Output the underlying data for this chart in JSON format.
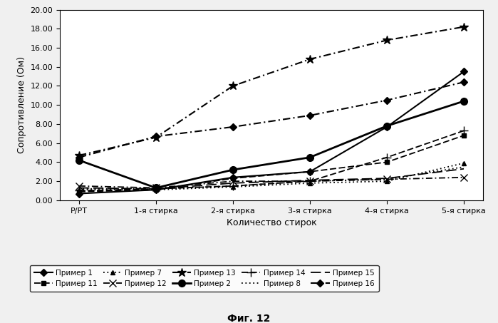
{
  "x_labels": [
    "Р/РТ",
    "1-я стирка",
    "2-я стирка",
    "3-я стирка",
    "4-я стирка",
    "5-я стирка"
  ],
  "x_positions": [
    0,
    1,
    2,
    3,
    4,
    5
  ],
  "xlabel": "Количество стирок",
  "ylabel": "Сопротивление (Ом)",
  "title": "Фиг. 12",
  "ylim": [
    0.0,
    20.0
  ],
  "yticks": [
    0.0,
    2.0,
    4.0,
    6.0,
    8.0,
    10.0,
    12.0,
    14.0,
    16.0,
    18.0,
    20.0
  ],
  "series": [
    {
      "label": "Пример 1",
      "values": [
        0.7,
        1.1,
        2.4,
        3.0,
        7.7,
        13.5
      ],
      "linestyle": "solid",
      "marker": "D",
      "markersize": 5,
      "linewidth": 1.5,
      "dashes": null
    },
    {
      "label": "Пример 2",
      "values": [
        4.2,
        1.3,
        3.2,
        4.5,
        7.8,
        10.4
      ],
      "linestyle": "solid",
      "marker": "o",
      "markersize": 7,
      "linewidth": 2.0,
      "dashes": null
    },
    {
      "label": "Пример 11",
      "values": [
        0.9,
        1.1,
        2.3,
        3.0,
        4.0,
        6.8
      ],
      "linestyle": "dashed",
      "marker": "s",
      "markersize": 5,
      "linewidth": 1.3,
      "dashes": [
        5,
        2
      ]
    },
    {
      "label": "Пример 14",
      "values": [
        1.0,
        1.2,
        1.5,
        2.0,
        4.5,
        7.3
      ],
      "linestyle": "dashed",
      "marker": "+",
      "markersize": 8,
      "linewidth": 1.3,
      "dashes": [
        5,
        2
      ]
    },
    {
      "label": "Пример 7",
      "values": [
        1.1,
        1.1,
        1.4,
        1.8,
        2.0,
        3.9
      ],
      "linestyle": "dotted",
      "marker": "^",
      "markersize": 5,
      "linewidth": 1.3,
      "dashes": [
        1,
        2
      ]
    },
    {
      "label": "Пример 8",
      "values": [
        1.2,
        1.2,
        1.5,
        2.0,
        2.2,
        3.5
      ],
      "linestyle": "dotted",
      "marker": "None",
      "markersize": 0,
      "linewidth": 1.3,
      "dashes": [
        1,
        2
      ]
    },
    {
      "label": "Пример 12",
      "values": [
        1.5,
        1.3,
        2.0,
        2.0,
        2.2,
        2.4
      ],
      "linestyle": "dashdot",
      "marker": "x",
      "markersize": 7,
      "linewidth": 1.3,
      "dashes": [
        5,
        2,
        1,
        2
      ]
    },
    {
      "label": "Пример 15",
      "values": [
        1.3,
        1.2,
        1.8,
        2.1,
        2.3,
        3.3
      ],
      "linestyle": "dashed",
      "marker": "None",
      "markersize": 0,
      "linewidth": 1.3,
      "dashes": [
        8,
        3
      ]
    },
    {
      "label": "Пример 13",
      "values": [
        4.7,
        6.6,
        12.0,
        14.8,
        16.8,
        18.2
      ],
      "linestyle": "dashdot",
      "marker": "*",
      "markersize": 9,
      "linewidth": 1.5,
      "dashes": [
        5,
        2,
        1,
        2
      ]
    },
    {
      "label": "Пример 16",
      "values": [
        4.5,
        6.7,
        7.7,
        8.9,
        10.5,
        12.4
      ],
      "linestyle": "dashdot",
      "marker": "D",
      "markersize": 5,
      "linewidth": 1.5,
      "dashes": [
        5,
        2,
        1,
        2
      ]
    }
  ],
  "legend_order": [
    "Пример 1",
    "Пример 11",
    "Пример 7",
    "Пример 12",
    "Пример 13",
    "Пример 2",
    "Пример 14",
    "Пример 8",
    "Пример 15",
    "Пример 16"
  ],
  "background_color": "#f0f0f0",
  "plot_bg_color": "#ffffff",
  "figsize": [
    6.99,
    4.53
  ],
  "dpi": 100
}
